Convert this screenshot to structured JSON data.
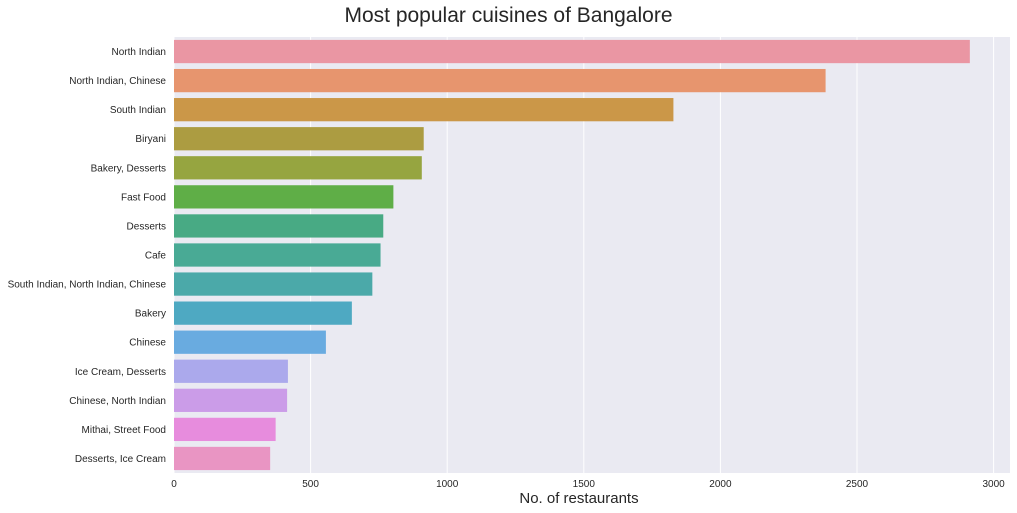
{
  "chart_data": {
    "type": "bar",
    "orientation": "horizontal",
    "title": "Most popular cuisines of Bangalore",
    "xlabel": "No. of restaurants",
    "ylabel": "",
    "xlim": [
      0,
      3060
    ],
    "xticks": [
      0,
      500,
      1000,
      1500,
      2000,
      2500,
      3000
    ],
    "grid": true,
    "background": "#eaeaf2",
    "categories": [
      "North Indian",
      "North Indian, Chinese",
      "South Indian",
      "Biryani",
      "Bakery, Desserts",
      "Fast Food",
      "Desserts",
      "Cafe",
      "South Indian, North Indian, Chinese",
      "Bakery",
      "Chinese",
      "Ice Cream, Desserts",
      "Chinese, North Indian",
      "Mithai, Street Food",
      "Desserts, Ice Cream"
    ],
    "values": [
      2913,
      2385,
      1828,
      914,
      907,
      803,
      766,
      756,
      726,
      651,
      556,
      417,
      414,
      372,
      352
    ],
    "colors": [
      "#ea96a3",
      "#e7956e",
      "#cb9748",
      "#ac9c41",
      "#96a540",
      "#5fae47",
      "#48aa84",
      "#49aa95",
      "#4ba9a9",
      "#4ea9c2",
      "#69abe0",
      "#aba9ec",
      "#cb9ce8",
      "#e78cdd",
      "#e995c3"
    ]
  }
}
